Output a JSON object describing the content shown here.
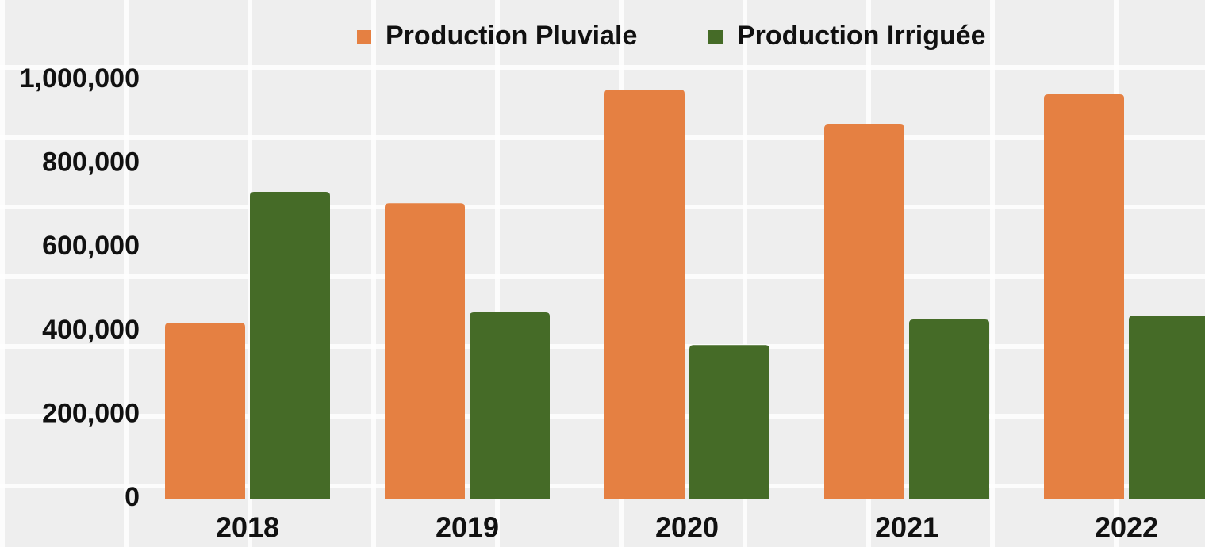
{
  "chart_data": {
    "type": "bar",
    "categories": [
      "2018",
      "2019",
      "2020",
      "2021",
      "2022"
    ],
    "series": [
      {
        "name": "Production Pluviale",
        "color": "#e58042",
        "values": [
          420000,
          706000,
          977000,
          894000,
          966000
        ]
      },
      {
        "name": "Production Irriguée",
        "color": "#456b27",
        "values": [
          733000,
          445000,
          367000,
          428000,
          437000
        ]
      }
    ],
    "ylim": [
      0,
      1000000
    ],
    "yticks": [
      0,
      {
        "value": 200000,
        "label": "200,000"
      },
      {
        "value": 400000,
        "label": "400,000"
      },
      {
        "value": 600000,
        "label": "600,000"
      },
      {
        "value": 800000,
        "label": "800,000"
      },
      {
        "value": 1000000,
        "label": "1,000,000"
      }
    ],
    "legend": "top"
  }
}
